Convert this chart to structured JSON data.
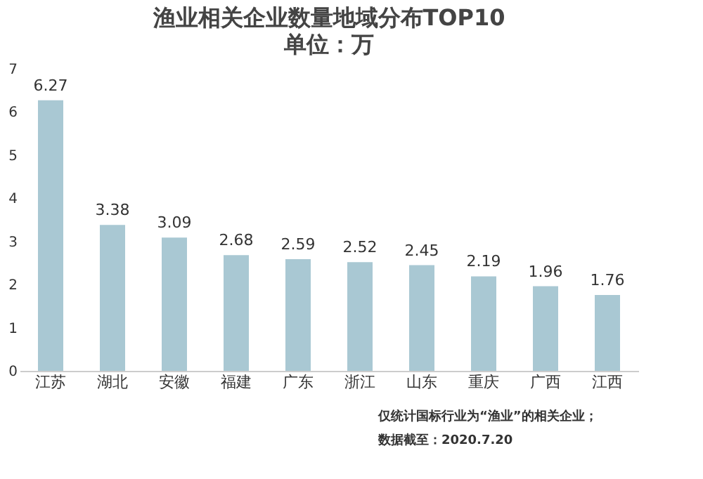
{
  "chart_data": {
    "type": "bar",
    "title": "渔业相关企业数量地域分布TOP10",
    "subtitle": "单位：万",
    "categories": [
      "江苏",
      "湖北",
      "安徽",
      "福建",
      "广东",
      "浙江",
      "山东",
      "重庆",
      "广西",
      "江西"
    ],
    "values": [
      6.27,
      3.38,
      3.09,
      2.68,
      2.59,
      2.52,
      2.45,
      2.19,
      1.96,
      1.76
    ],
    "color": "#a9c8d3",
    "data_labels": true,
    "grid": false,
    "ylim": [
      0,
      7
    ],
    "yticks": [
      0,
      1,
      2,
      3,
      4,
      5,
      6,
      7
    ],
    "annotations": [
      "仅统计国标行业为“渔业”的相关企业；",
      "数据截至：2020.7.20"
    ]
  }
}
